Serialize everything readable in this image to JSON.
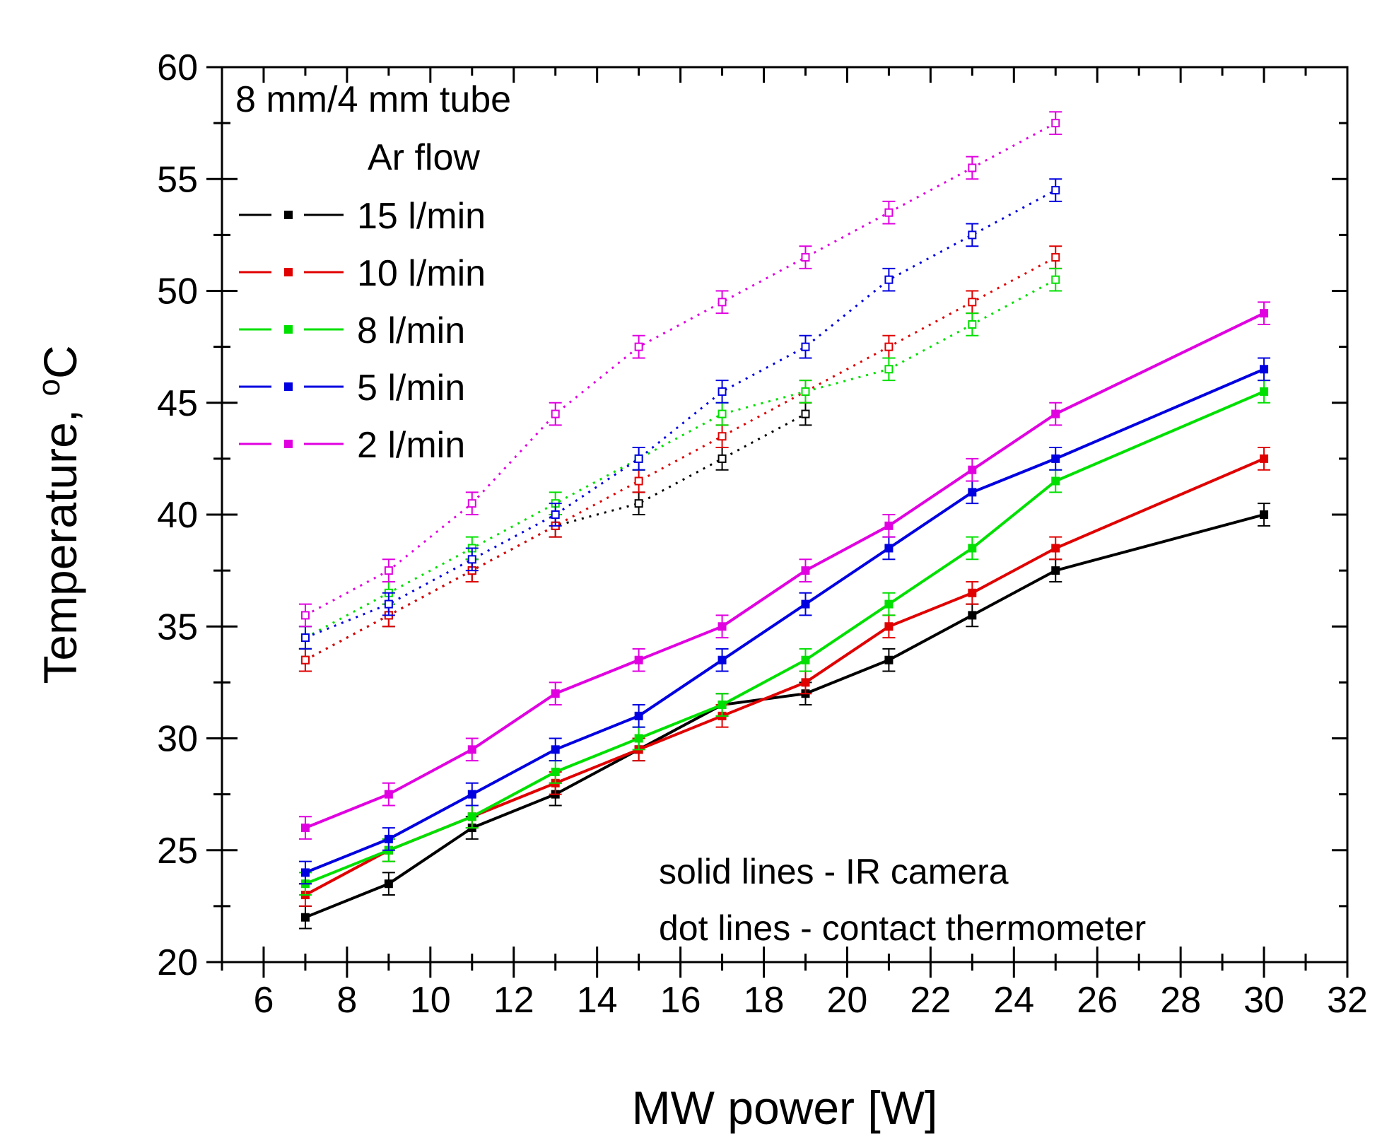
{
  "chart_data": {
    "type": "line",
    "title": "",
    "xlabel": "MW power [W]",
    "ylabel": "Temperature, ",
    "ylabel_unit": "C",
    "ylabel_unit_superscript": "o",
    "xlim": [
      5,
      32
    ],
    "ylim": [
      20,
      60
    ],
    "xticks": [
      "6",
      "8",
      "10",
      "12",
      "14",
      "16",
      "18",
      "20",
      "22",
      "24",
      "26",
      "28",
      "30",
      "32"
    ],
    "yticks": [
      "20",
      "25",
      "30",
      "35",
      "40",
      "45",
      "50",
      "55",
      "60"
    ],
    "legend": {
      "title_line1": "8 mm/4 mm tube",
      "title_line2": "Ar flow",
      "placement": "top-left",
      "entries": [
        "15 l/min",
        "10 l/min",
        "8 l/min",
        "5 l/min",
        "2 l/min"
      ]
    },
    "annotations": [
      "solid lines - IR camera",
      "dot lines - contact thermometer"
    ],
    "colors": {
      "15 l/min": "#000000",
      "10 l/min": "#e00000",
      "8 l/min": "#00e000",
      "5 l/min": "#0000e0",
      "2 l/min": "#e000e0"
    },
    "series": [
      {
        "name": "15 l/min",
        "method": "IR camera",
        "style": "solid",
        "color": "#000000",
        "x": [
          7,
          9,
          11,
          13,
          15,
          17,
          19,
          21,
          23,
          25,
          30
        ],
        "y": [
          22,
          23.5,
          26,
          27.5,
          29.5,
          31.5,
          32,
          33.5,
          35.5,
          37.5,
          40
        ],
        "error": 0.5
      },
      {
        "name": "10 l/min",
        "method": "IR camera",
        "style": "solid",
        "color": "#e00000",
        "x": [
          7,
          9,
          11,
          13,
          15,
          17,
          19,
          21,
          23,
          25,
          30
        ],
        "y": [
          23,
          25,
          26.5,
          28,
          29.5,
          31,
          32.5,
          35,
          36.5,
          38.5,
          42.5
        ],
        "error": 0.5
      },
      {
        "name": "8 l/min",
        "method": "IR camera",
        "style": "solid",
        "color": "#00e000",
        "x": [
          7,
          9,
          11,
          13,
          15,
          17,
          19,
          21,
          23,
          25,
          30
        ],
        "y": [
          23.5,
          25,
          26.5,
          28.5,
          30,
          31.5,
          33.5,
          36,
          38.5,
          41.5,
          45.5
        ],
        "error": 0.5
      },
      {
        "name": "5 l/min",
        "method": "IR camera",
        "style": "solid",
        "color": "#0000e0",
        "x": [
          7,
          9,
          11,
          13,
          15,
          17,
          19,
          21,
          23,
          25,
          30
        ],
        "y": [
          24,
          25.5,
          27.5,
          29.5,
          31,
          33.5,
          36,
          38.5,
          41,
          42.5,
          46.5
        ],
        "error": 0.5
      },
      {
        "name": "2 l/min",
        "method": "IR camera",
        "style": "solid",
        "color": "#e000e0",
        "x": [
          7,
          9,
          11,
          13,
          15,
          17,
          19,
          21,
          23,
          25,
          30
        ],
        "y": [
          26,
          27.5,
          29.5,
          32,
          33.5,
          35,
          37.5,
          39.5,
          42,
          44.5,
          49
        ],
        "error": 0.5
      },
      {
        "name": "15 l/min",
        "method": "contact thermometer",
        "style": "dotted",
        "color": "#000000",
        "x": [
          7,
          9,
          11,
          13,
          15,
          17,
          19
        ],
        "y": [
          33.5,
          35.5,
          37.5,
          39.5,
          40.5,
          42.5,
          44.5
        ],
        "error": 0.5
      },
      {
        "name": "10 l/min",
        "method": "contact thermometer",
        "style": "dotted",
        "color": "#e00000",
        "x": [
          7,
          9,
          11,
          13,
          15,
          17,
          19,
          21,
          23,
          25
        ],
        "y": [
          33.5,
          35.5,
          37.5,
          39.5,
          41.5,
          43.5,
          45.5,
          47.5,
          49.5,
          51.5
        ],
        "error": 0.5
      },
      {
        "name": "8 l/min",
        "method": "contact thermometer",
        "style": "dotted",
        "color": "#00e000",
        "x": [
          7,
          9,
          11,
          13,
          15,
          17,
          19,
          21,
          23,
          25
        ],
        "y": [
          34.5,
          36.5,
          38.5,
          40.5,
          42.5,
          44.5,
          45.5,
          46.5,
          48.5,
          50.5
        ],
        "error": 0.5
      },
      {
        "name": "5 l/min",
        "method": "contact thermometer",
        "style": "dotted",
        "color": "#0000e0",
        "x": [
          7,
          9,
          11,
          13,
          15,
          17,
          19,
          21,
          23,
          25
        ],
        "y": [
          34.5,
          36,
          38,
          40,
          42.5,
          45.5,
          47.5,
          50.5,
          52.5,
          54.5
        ],
        "error": 0.5
      },
      {
        "name": "2 l/min",
        "method": "contact thermometer",
        "style": "dotted",
        "color": "#e000e0",
        "x": [
          7,
          9,
          11,
          13,
          15,
          17,
          19,
          21,
          23,
          25
        ],
        "y": [
          35.5,
          37.5,
          40.5,
          44.5,
          47.5,
          49.5,
          51.5,
          53.5,
          55.5,
          57.5
        ],
        "error": 0.5
      }
    ]
  }
}
